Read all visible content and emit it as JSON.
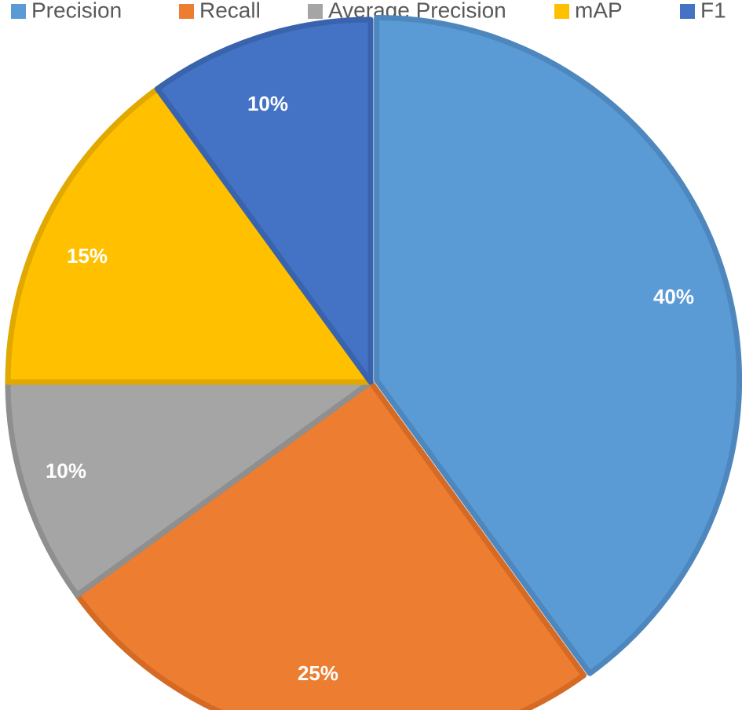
{
  "chart_data": {
    "type": "pie",
    "start_angle_deg": 0,
    "direction": "clockwise",
    "legend_position": "top",
    "series": [
      {
        "slices": [
          {
            "name": "Precision",
            "value": 40,
            "label": "40%",
            "color": "#5b9bd5",
            "edge_color": "#4e87bd"
          },
          {
            "name": "Recall",
            "value": 25,
            "label": "25%",
            "color": "#ed7d31",
            "edge_color": "#d46a24"
          },
          {
            "name": "Average Precision",
            "value": 10,
            "label": "10%",
            "color": "#a5a5a5",
            "edge_color": "#8f8f8f"
          },
          {
            "name": "mAP",
            "value": 15,
            "label": "15%",
            "color": "#ffc000",
            "edge_color": "#e0a800"
          },
          {
            "name": "F1",
            "value": 10,
            "label": "10%",
            "color": "#4472c4",
            "edge_color": "#3a63ad"
          }
        ]
      }
    ]
  }
}
